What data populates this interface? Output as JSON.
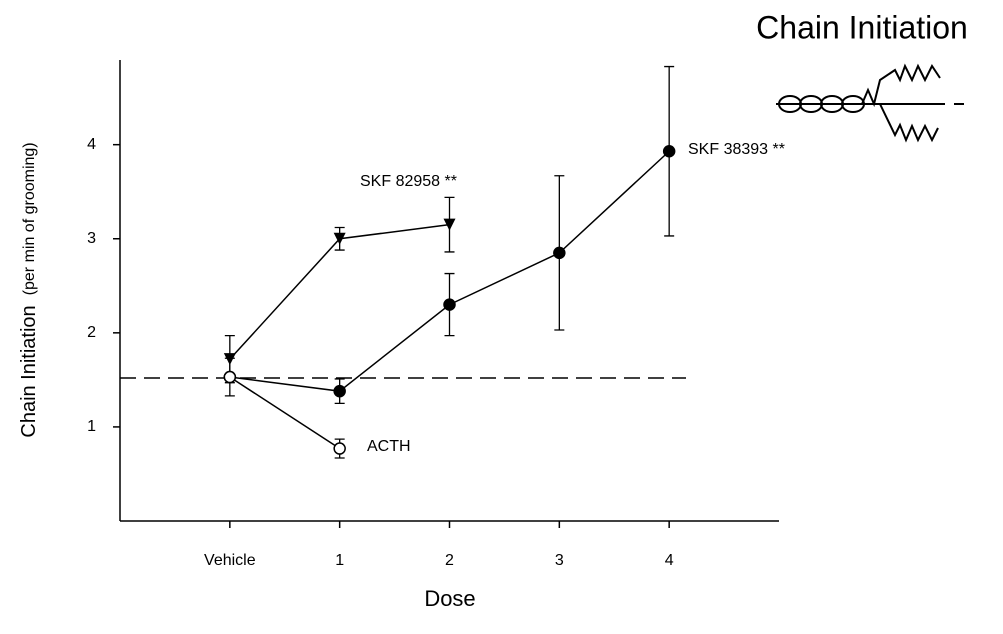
{
  "chart_data": {
    "type": "line",
    "title": "Chain Initiation",
    "y_label": "Chain Initiation",
    "y_label_sub": "(per min of grooming)",
    "x_label": "Dose",
    "categories": [
      "Vehicle",
      "1",
      "2",
      "3",
      "4"
    ],
    "ylim": [
      0,
      4.9
    ],
    "yticks": [
      1,
      2,
      3,
      4
    ],
    "reference_line": 1.52,
    "series": [
      {
        "name": "SKF 82958 **",
        "color": "#000000",
        "marker": "triangle-down",
        "values": [
          1.72,
          3.0,
          3.15,
          null,
          null
        ],
        "errors": [
          0.25,
          0.12,
          0.29,
          null,
          null
        ]
      },
      {
        "name": "SKF 38393 **",
        "color": "#000000",
        "marker": "circle-filled",
        "values": [
          1.53,
          1.38,
          2.3,
          2.85,
          3.93
        ],
        "errors": [
          null,
          0.13,
          0.33,
          0.82,
          0.9
        ]
      },
      {
        "name": "ACTH",
        "color": "#000000",
        "marker": "circle-open",
        "values": [
          1.53,
          0.77,
          null,
          null,
          null
        ],
        "errors": [
          0.2,
          0.1,
          null,
          null,
          null
        ]
      }
    ]
  }
}
